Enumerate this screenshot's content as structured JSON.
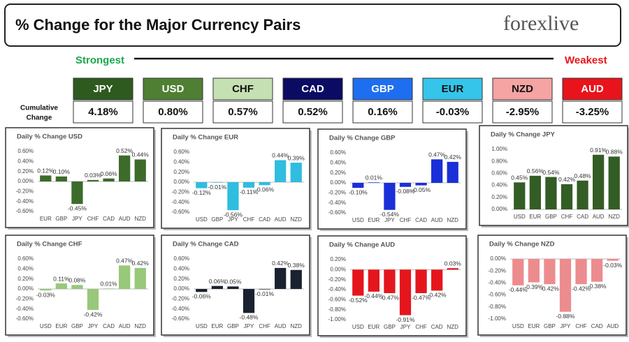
{
  "header": {
    "title": "% Change for the Major Currency Pairs",
    "logo": "forexlive"
  },
  "ranking": {
    "strongest": "Strongest",
    "weakest": "Weakest",
    "row_label": [
      "Cumulative",
      "Change"
    ],
    "currencies": [
      {
        "name": "JPY",
        "change": "4.18%",
        "color": "#2e5a1f"
      },
      {
        "name": "USD",
        "change": "0.80%",
        "color": "#4f7f33"
      },
      {
        "name": "CHF",
        "change": "0.57%",
        "color": "#c5e0b3"
      },
      {
        "name": "CAD",
        "change": "0.52%",
        "color": "#0b0b63"
      },
      {
        "name": "GBP",
        "change": "0.16%",
        "color": "#1e6ef0"
      },
      {
        "name": "EUR",
        "change": "-0.03%",
        "color": "#35c5ea"
      },
      {
        "name": "NZD",
        "change": "-2.95%",
        "color": "#f5a3a3"
      },
      {
        "name": "AUD",
        "change": "-3.25%",
        "color": "#e8141c"
      }
    ]
  },
  "chart_data": [
    {
      "type": "bar",
      "title": "Daily % Change USD",
      "color": "#3c6b2a",
      "categories": [
        "EUR",
        "GBP",
        "JPY",
        "CHF",
        "CAD",
        "AUD",
        "NZD"
      ],
      "values": [
        0.12,
        0.1,
        -0.45,
        0.03,
        0.06,
        0.52,
        0.44
      ],
      "value_labels": [
        "0.12%",
        "0.10%",
        "-0.45%",
        "0.03%",
        "0.06%",
        "0.52%",
        "0.44%"
      ],
      "ylim": [
        -0.6,
        0.6
      ],
      "yticks": [
        {
          "value": -0.6,
          "label": "-0.60%"
        },
        {
          "value": -0.4,
          "label": "-0.40%"
        },
        {
          "value": -0.2,
          "label": "-0.20%"
        },
        {
          "value": 0,
          "label": "0.00%"
        },
        {
          "value": 0.2,
          "label": "0.20%"
        },
        {
          "value": 0.4,
          "label": "0.40%"
        },
        {
          "value": 0.6,
          "label": "0.60%"
        }
      ]
    },
    {
      "type": "bar",
      "title": "Daily % Change EUR",
      "color": "#2fbde0",
      "categories": [
        "USD",
        "GBP",
        "JPY",
        "CHF",
        "CAD",
        "AUD",
        "NZD"
      ],
      "values": [
        -0.12,
        -0.01,
        -0.56,
        -0.11,
        -0.06,
        0.44,
        0.39
      ],
      "value_labels": [
        "-0.12%",
        "-0.01%",
        "-0.56%",
        "-0.11%",
        "-0.06%",
        "0.44%",
        "0.39%"
      ],
      "ylim": [
        -0.6,
        0.6
      ],
      "yticks": [
        {
          "value": -0.6,
          "label": "-0.60%"
        },
        {
          "value": -0.4,
          "label": "-0.40%"
        },
        {
          "value": -0.2,
          "label": "-0.20%"
        },
        {
          "value": 0,
          "label": "0.00%"
        },
        {
          "value": 0.2,
          "label": "0.20%"
        },
        {
          "value": 0.4,
          "label": "0.40%"
        },
        {
          "value": 0.6,
          "label": "0.60%"
        }
      ]
    },
    {
      "type": "bar",
      "title": "Daily % Change GBP",
      "color": "#1a2fd8",
      "categories": [
        "USD",
        "EUR",
        "JPY",
        "CHF",
        "CAD",
        "AUD",
        "NZD"
      ],
      "values": [
        -0.1,
        0.01,
        -0.54,
        -0.08,
        -0.05,
        0.47,
        0.42
      ],
      "value_labels": [
        "-0.10%",
        "0.01%",
        "-0.54%",
        "-0.08%",
        "-0.05%",
        "0.47%",
        "0.42%"
      ],
      "ylim": [
        -0.6,
        0.6
      ],
      "yticks": [
        {
          "value": -0.6,
          "label": "-0.60%"
        },
        {
          "value": -0.4,
          "label": "-0.40%"
        },
        {
          "value": -0.2,
          "label": "-0.20%"
        },
        {
          "value": 0,
          "label": "0.00%"
        },
        {
          "value": 0.2,
          "label": "0.20%"
        },
        {
          "value": 0.4,
          "label": "0.40%"
        },
        {
          "value": 0.6,
          "label": "0.60%"
        }
      ]
    },
    {
      "type": "bar",
      "title": "Daily % Change JPY",
      "color": "#335d24",
      "categories": [
        "USD",
        "EUR",
        "GBP",
        "CHF",
        "CAD",
        "AUD",
        "NZD"
      ],
      "values": [
        0.45,
        0.56,
        0.54,
        0.42,
        0.48,
        0.91,
        0.88
      ],
      "value_labels": [
        "0.45%",
        "0.56%",
        "0.54%",
        "0.42%",
        "0.48%",
        "0.91%",
        "0.88%"
      ],
      "ylim": [
        0,
        1
      ],
      "yticks": [
        {
          "value": 0,
          "label": "0.00%"
        },
        {
          "value": 0.2,
          "label": "0.20%"
        },
        {
          "value": 0.4,
          "label": "0.40%"
        },
        {
          "value": 0.6,
          "label": "0.60%"
        },
        {
          "value": 0.8,
          "label": "0.80%"
        },
        {
          "value": 1,
          "label": "1.00%"
        }
      ]
    },
    {
      "type": "bar",
      "title": "Daily % Change CHF",
      "color": "#98c87a",
      "categories": [
        "USD",
        "EUR",
        "GBP",
        "JPY",
        "CAD",
        "AUD",
        "NZD"
      ],
      "values": [
        -0.03,
        0.11,
        0.08,
        -0.42,
        0.01,
        0.47,
        0.42
      ],
      "value_labels": [
        "-0.03%",
        "0.11%",
        "0.08%",
        "-0.42%",
        "0.01%",
        "0.47%",
        "0.42%"
      ],
      "ylim": [
        -0.6,
        0.6
      ],
      "yticks": [
        {
          "value": -0.6,
          "label": "-0.60%"
        },
        {
          "value": -0.4,
          "label": "-0.40%"
        },
        {
          "value": -0.2,
          "label": "-0.20%"
        },
        {
          "value": 0,
          "label": "0.00%"
        },
        {
          "value": 0.2,
          "label": "0.20%"
        },
        {
          "value": 0.4,
          "label": "0.40%"
        },
        {
          "value": 0.6,
          "label": "0.60%"
        }
      ]
    },
    {
      "type": "bar",
      "title": "Daily % Change CAD",
      "color": "#1a2230",
      "categories": [
        "USD",
        "EUR",
        "GBP",
        "JPY",
        "CHF",
        "AUD",
        "NZD"
      ],
      "values": [
        -0.06,
        0.06,
        0.05,
        -0.48,
        -0.01,
        0.42,
        0.38
      ],
      "value_labels": [
        "-0.06%",
        "0.06%",
        "0.05%",
        "-0.48%",
        "-0.01%",
        "0.42%",
        "0.38%"
      ],
      "ylim": [
        -0.6,
        0.6
      ],
      "yticks": [
        {
          "value": -0.6,
          "label": "-0.60%"
        },
        {
          "value": -0.4,
          "label": "-0.40%"
        },
        {
          "value": -0.2,
          "label": "-0.20%"
        },
        {
          "value": 0,
          "label": "0.00%"
        },
        {
          "value": 0.2,
          "label": "0.20%"
        },
        {
          "value": 0.4,
          "label": "0.40%"
        },
        {
          "value": 0.6,
          "label": "0.60%"
        }
      ]
    },
    {
      "type": "bar",
      "title": "Daily % Change AUD",
      "color": "#e4161c",
      "categories": [
        "USD",
        "EUR",
        "GBP",
        "JPY",
        "CHF",
        "CAD",
        "NZD"
      ],
      "values": [
        -0.52,
        -0.44,
        -0.47,
        -0.91,
        -0.47,
        -0.42,
        0.03
      ],
      "value_labels": [
        "-0.52%",
        "-0.44%",
        "-0.47%",
        "-0.91%",
        "-0.47%",
        "-0.42%",
        "0.03%"
      ],
      "ylim": [
        -1,
        0.2
      ],
      "yticks": [
        {
          "value": -1,
          "label": "-1.00%"
        },
        {
          "value": -0.8,
          "label": "-0.80%"
        },
        {
          "value": -0.6,
          "label": "-0.60%"
        },
        {
          "value": -0.4,
          "label": "-0.40%"
        },
        {
          "value": -0.2,
          "label": "-0.20%"
        },
        {
          "value": 0,
          "label": "0.00%"
        },
        {
          "value": 0.2,
          "label": "0.20%"
        }
      ]
    },
    {
      "type": "bar",
      "title": "Daily % Change NZD",
      "color": "#ec8c8f",
      "categories": [
        "USD",
        "EUR",
        "GBP",
        "JPY",
        "CHF",
        "CAD",
        "AUD"
      ],
      "values": [
        -0.44,
        -0.39,
        -0.42,
        -0.88,
        -0.42,
        -0.38,
        -0.03
      ],
      "value_labels": [
        "-0.44%",
        "-0.39%",
        "-0.42%",
        "-0.88%",
        "-0.42%",
        "-0.38%",
        "-0.03%"
      ],
      "ylim": [
        -1,
        0
      ],
      "yticks": [
        {
          "value": -1,
          "label": "-1.00%"
        },
        {
          "value": -0.8,
          "label": "-0.80%"
        },
        {
          "value": -0.6,
          "label": "-0.60%"
        },
        {
          "value": -0.4,
          "label": "-0.40%"
        },
        {
          "value": -0.2,
          "label": "-0.20%"
        },
        {
          "value": 0,
          "label": "0.00%"
        }
      ]
    }
  ]
}
